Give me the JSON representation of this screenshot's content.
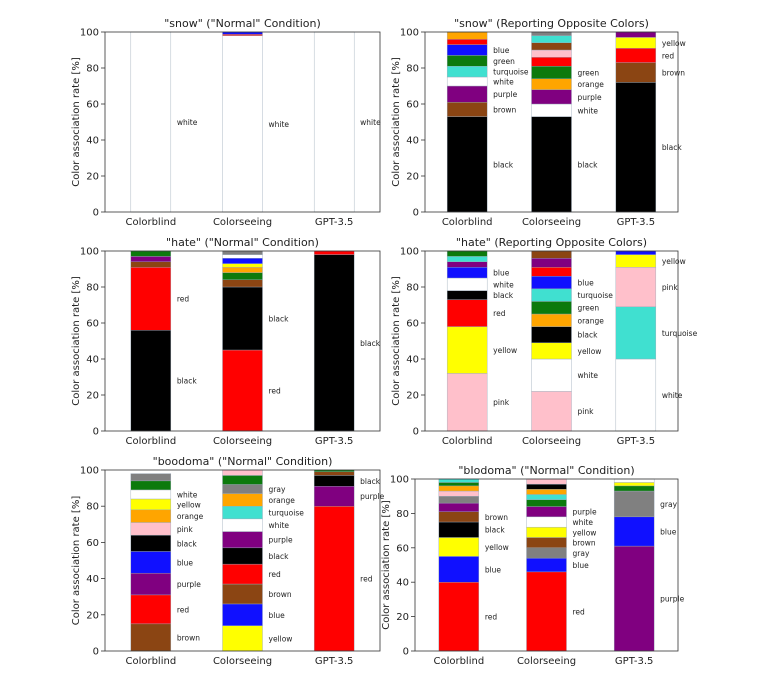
{
  "colors": {
    "white": "#ffffff",
    "black": "#000000",
    "red": "#ff0000",
    "green": "#0c7a0c",
    "blue": "#1010ff",
    "yellow": "#ffff00",
    "orange": "#ffa500",
    "purple": "#800080",
    "brown": "#8b4513",
    "pink": "#ffc0cb",
    "gray": "#808080",
    "turquoise": "#40e0d0"
  },
  "chart_data": [
    {
      "type": "bar",
      "stacked": true,
      "title": "\"snow\" (\"Normal\" Condition)",
      "ylabel": "Color association rate [%]",
      "ylim": [
        0,
        100
      ],
      "yticks": [
        "0",
        "20",
        "40",
        "60",
        "80",
        "100"
      ],
      "categories": [
        "Colorblind",
        "Colorseeing",
        "GPT-3.5"
      ],
      "stacks": [
        [
          {
            "color": "white",
            "value": 100,
            "label": "white"
          }
        ],
        [
          {
            "color": "white",
            "value": 98,
            "label": "white"
          },
          {
            "color": "red",
            "value": 0.7
          },
          {
            "color": "blue",
            "value": 1.3
          }
        ],
        [
          {
            "color": "white",
            "value": 100,
            "label": "white"
          }
        ]
      ]
    },
    {
      "type": "bar",
      "stacked": true,
      "title": "\"snow\" (Reporting Opposite Colors)",
      "ylabel": "Color association rate [%]",
      "ylim": [
        0,
        100
      ],
      "yticks": [
        "0",
        "20",
        "40",
        "60",
        "80",
        "100"
      ],
      "categories": [
        "Colorblind",
        "Colorseeing",
        "GPT-3.5"
      ],
      "stacks": [
        [
          {
            "color": "black",
            "value": 53,
            "label": "black"
          },
          {
            "color": "brown",
            "value": 8,
            "label": "brown"
          },
          {
            "color": "purple",
            "value": 9,
            "label": "purple"
          },
          {
            "color": "white",
            "value": 5,
            "label": "white"
          },
          {
            "color": "turquoise",
            "value": 6,
            "label": "turquoise"
          },
          {
            "color": "green",
            "value": 6,
            "label": "green"
          },
          {
            "color": "blue",
            "value": 6,
            "label": "blue"
          },
          {
            "color": "red",
            "value": 3
          },
          {
            "color": "orange",
            "value": 4
          }
        ],
        [
          {
            "color": "black",
            "value": 53,
            "label": "black"
          },
          {
            "color": "white",
            "value": 7,
            "label": "white"
          },
          {
            "color": "purple",
            "value": 8,
            "label": "purple"
          },
          {
            "color": "orange",
            "value": 6,
            "label": "orange"
          },
          {
            "color": "green",
            "value": 7,
            "label": "green"
          },
          {
            "color": "red",
            "value": 5
          },
          {
            "color": "pink",
            "value": 4
          },
          {
            "color": "brown",
            "value": 4
          },
          {
            "color": "turquoise",
            "value": 4
          },
          {
            "color": "gray",
            "value": 2
          }
        ],
        [
          {
            "color": "black",
            "value": 72,
            "label": "black"
          },
          {
            "color": "brown",
            "value": 11,
            "label": "brown"
          },
          {
            "color": "red",
            "value": 8,
            "label": "red"
          },
          {
            "color": "yellow",
            "value": 6,
            "label": "yellow"
          },
          {
            "color": "purple",
            "value": 3
          }
        ]
      ]
    },
    {
      "type": "bar",
      "stacked": true,
      "title": "\"hate\" (\"Normal\" Condition)",
      "ylabel": "Color association rate [%]",
      "ylim": [
        0,
        100
      ],
      "yticks": [
        "0",
        "20",
        "40",
        "60",
        "80",
        "100"
      ],
      "categories": [
        "Colorblind",
        "Colorseeing",
        "GPT-3.5"
      ],
      "stacks": [
        [
          {
            "color": "black",
            "value": 56,
            "label": "black"
          },
          {
            "color": "red",
            "value": 35,
            "label": "red"
          },
          {
            "color": "brown",
            "value": 3
          },
          {
            "color": "purple",
            "value": 3
          },
          {
            "color": "green",
            "value": 3
          }
        ],
        [
          {
            "color": "red",
            "value": 45,
            "label": "red"
          },
          {
            "color": "black",
            "value": 35,
            "label": "black"
          },
          {
            "color": "brown",
            "value": 4
          },
          {
            "color": "green",
            "value": 4
          },
          {
            "color": "orange",
            "value": 3
          },
          {
            "color": "yellow",
            "value": 2
          },
          {
            "color": "blue",
            "value": 3
          },
          {
            "color": "white",
            "value": 2
          },
          {
            "color": "gray",
            "value": 2
          }
        ],
        [
          {
            "color": "black",
            "value": 98,
            "label": "black"
          },
          {
            "color": "red",
            "value": 2
          }
        ]
      ]
    },
    {
      "type": "bar",
      "stacked": true,
      "title": "\"hate\" (Reporting Opposite Colors)",
      "ylabel": "Color association rate [%]",
      "ylim": [
        0,
        100
      ],
      "yticks": [
        "0",
        "20",
        "40",
        "60",
        "80",
        "100"
      ],
      "categories": [
        "Colorblind",
        "Colorseeing",
        "GPT-3.5"
      ],
      "stacks": [
        [
          {
            "color": "pink",
            "value": 32,
            "label": "pink"
          },
          {
            "color": "yellow",
            "value": 26,
            "label": "yellow"
          },
          {
            "color": "red",
            "value": 15,
            "label": "red"
          },
          {
            "color": "black",
            "value": 5,
            "label": "black"
          },
          {
            "color": "white",
            "value": 7,
            "label": "white"
          },
          {
            "color": "blue",
            "value": 6,
            "label": "blue"
          },
          {
            "color": "purple",
            "value": 3
          },
          {
            "color": "turquoise",
            "value": 3
          },
          {
            "color": "green",
            "value": 3
          }
        ],
        [
          {
            "color": "pink",
            "value": 22,
            "label": "pink"
          },
          {
            "color": "white",
            "value": 18,
            "label": "white"
          },
          {
            "color": "yellow",
            "value": 9,
            "label": "yellow"
          },
          {
            "color": "black",
            "value": 9,
            "label": "black"
          },
          {
            "color": "orange",
            "value": 7,
            "label": "orange"
          },
          {
            "color": "green",
            "value": 7,
            "label": "green"
          },
          {
            "color": "turquoise",
            "value": 7,
            "label": "turquoise"
          },
          {
            "color": "blue",
            "value": 7,
            "label": "blue"
          },
          {
            "color": "red",
            "value": 5
          },
          {
            "color": "purple",
            "value": 5
          },
          {
            "color": "brown",
            "value": 4
          }
        ],
        [
          {
            "color": "white",
            "value": 40,
            "label": "white"
          },
          {
            "color": "turquoise",
            "value": 29,
            "label": "turquoise"
          },
          {
            "color": "pink",
            "value": 22,
            "label": "pink"
          },
          {
            "color": "yellow",
            "value": 7,
            "label": "yellow"
          },
          {
            "color": "blue",
            "value": 2
          }
        ]
      ]
    },
    {
      "type": "bar",
      "stacked": true,
      "title": "\"boodoma\" (\"Normal\" Condition)",
      "ylabel": "Color association rate [%]",
      "ylim": [
        0,
        100
      ],
      "yticks": [
        "0",
        "20",
        "40",
        "60",
        "80",
        "100"
      ],
      "categories": [
        "Colorblind",
        "Colorseeing",
        "GPT-3.5"
      ],
      "stacks": [
        [
          {
            "color": "brown",
            "value": 15,
            "label": "brown"
          },
          {
            "color": "red",
            "value": 16,
            "label": "red"
          },
          {
            "color": "purple",
            "value": 12,
            "label": "purple"
          },
          {
            "color": "blue",
            "value": 12,
            "label": "blue"
          },
          {
            "color": "black",
            "value": 9,
            "label": "black"
          },
          {
            "color": "pink",
            "value": 7,
            "label": "pink"
          },
          {
            "color": "orange",
            "value": 7,
            "label": "orange"
          },
          {
            "color": "yellow",
            "value": 6,
            "label": "yellow"
          },
          {
            "color": "white",
            "value": 5,
            "label": "white"
          },
          {
            "color": "green",
            "value": 5
          },
          {
            "color": "gray",
            "value": 4
          }
        ],
        [
          {
            "color": "yellow",
            "value": 14,
            "label": "yellow"
          },
          {
            "color": "blue",
            "value": 12,
            "label": "blue"
          },
          {
            "color": "brown",
            "value": 11,
            "label": "brown"
          },
          {
            "color": "red",
            "value": 11,
            "label": "red"
          },
          {
            "color": "black",
            "value": 9,
            "label": "black"
          },
          {
            "color": "purple",
            "value": 9,
            "label": "purple"
          },
          {
            "color": "white",
            "value": 7,
            "label": "white"
          },
          {
            "color": "turquoise",
            "value": 7,
            "label": "turquoise"
          },
          {
            "color": "orange",
            "value": 7,
            "label": "orange"
          },
          {
            "color": "gray",
            "value": 5,
            "label": "gray"
          },
          {
            "color": "green",
            "value": 5
          },
          {
            "color": "pink",
            "value": 3
          }
        ],
        [
          {
            "color": "red",
            "value": 80,
            "label": "red"
          },
          {
            "color": "purple",
            "value": 11,
            "label": "purple"
          },
          {
            "color": "black",
            "value": 6,
            "label": "black"
          },
          {
            "color": "brown",
            "value": 2
          },
          {
            "color": "green",
            "value": 1
          }
        ]
      ]
    },
    {
      "type": "bar",
      "stacked": true,
      "title": "\"bIodoma\" (\"Normal\" Condition)",
      "ylabel": "Color association rate [%]",
      "ylim": [
        0,
        100
      ],
      "yticks": [
        "0",
        "20",
        "40",
        "60",
        "80",
        "100"
      ],
      "categories": [
        "Colorblind",
        "Colorseeing",
        "GPT-3.5"
      ],
      "stacks": [
        [
          {
            "color": "red",
            "value": 40,
            "label": "red"
          },
          {
            "color": "blue",
            "value": 15,
            "label": "blue"
          },
          {
            "color": "yellow",
            "value": 11,
            "label": "yellow"
          },
          {
            "color": "black",
            "value": 9,
            "label": "black"
          },
          {
            "color": "brown",
            "value": 6,
            "label": "brown"
          },
          {
            "color": "purple",
            "value": 5
          },
          {
            "color": "gray",
            "value": 4
          },
          {
            "color": "pink",
            "value": 3
          },
          {
            "color": "orange",
            "value": 3
          },
          {
            "color": "green",
            "value": 2
          },
          {
            "color": "turquoise",
            "value": 2
          }
        ],
        [
          {
            "color": "red",
            "value": 46,
            "label": "red"
          },
          {
            "color": "blue",
            "value": 8,
            "label": "blue"
          },
          {
            "color": "gray",
            "value": 6,
            "label": "gray"
          },
          {
            "color": "brown",
            "value": 6,
            "label": "brown"
          },
          {
            "color": "yellow",
            "value": 6,
            "label": "yellow"
          },
          {
            "color": "white",
            "value": 6,
            "label": "white"
          },
          {
            "color": "purple",
            "value": 6,
            "label": "purple"
          },
          {
            "color": "green",
            "value": 4
          },
          {
            "color": "turquoise",
            "value": 3
          },
          {
            "color": "orange",
            "value": 3
          },
          {
            "color": "black",
            "value": 3
          },
          {
            "color": "pink",
            "value": 3
          }
        ],
        [
          {
            "color": "purple",
            "value": 61,
            "label": "purple"
          },
          {
            "color": "blue",
            "value": 17,
            "label": "blue"
          },
          {
            "color": "gray",
            "value": 15,
            "label": "gray"
          },
          {
            "color": "green",
            "value": 3
          },
          {
            "color": "yellow",
            "value": 2
          },
          {
            "color": "white",
            "value": 2
          }
        ]
      ]
    }
  ]
}
